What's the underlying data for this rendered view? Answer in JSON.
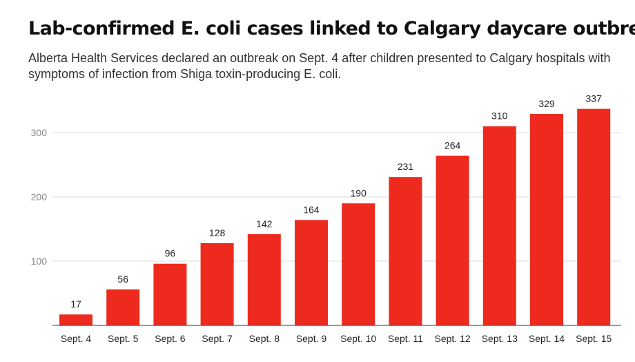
{
  "chart_data": {
    "type": "bar",
    "title": "Lab-confirmed E. coli cases linked to Calgary daycare outbreak",
    "subtitle": "Alberta Health Services declared an outbreak on Sept. 4 after children presented to Calgary hospitals with symptoms of infection from Shiga toxin-producing E. coli.",
    "categories": [
      "Sept. 4",
      "Sept. 5",
      "Sept. 6",
      "Sept. 7",
      "Sept. 8",
      "Sept. 9",
      "Sept. 10",
      "Sept. 11",
      "Sept. 12",
      "Sept. 13",
      "Sept. 14",
      "Sept. 15"
    ],
    "values": [
      17,
      56,
      96,
      128,
      142,
      164,
      190,
      231,
      264,
      310,
      329,
      337
    ],
    "yticks": [
      100,
      200,
      300
    ],
    "ylim": [
      0,
      350
    ],
    "xlabel": "",
    "ylabel": "",
    "grid": true,
    "bar_color": "#ee2a1f"
  }
}
